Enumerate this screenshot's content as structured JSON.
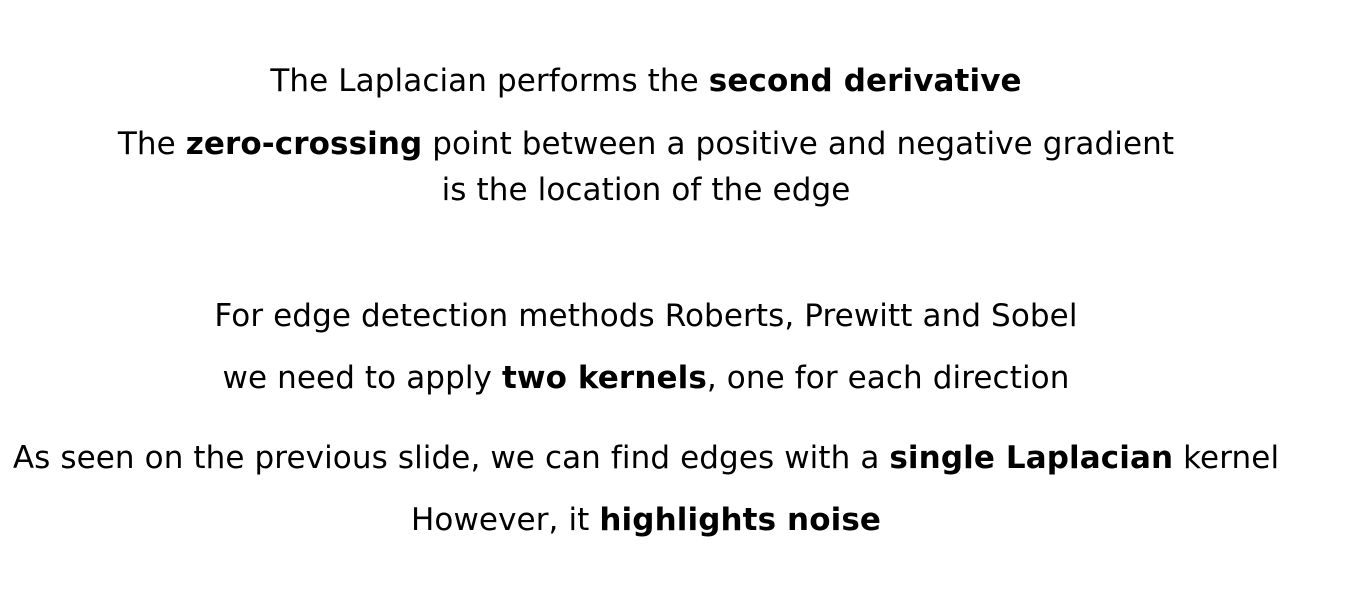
{
  "slide": {
    "line1": {
      "pre": "The Laplacian performs the ",
      "bold": "second derivative"
    },
    "line2": {
      "pre": "The ",
      "bold": "zero-crossing",
      "post": " point between a positive and negative gradient"
    },
    "line3": {
      "text": "is the location of the edge"
    },
    "line4": {
      "text": "For edge detection methods Roberts, Prewitt and Sobel"
    },
    "line5": {
      "pre": "we need to apply ",
      "bold": "two kernels",
      "post": ", one for each direction"
    },
    "line6": {
      "pre": "As seen on the previous slide, we can find edges with a ",
      "bold": "single Laplacian",
      "post": " kernel"
    },
    "line7": {
      "pre": "However, it ",
      "bold": "highlights noise"
    }
  }
}
